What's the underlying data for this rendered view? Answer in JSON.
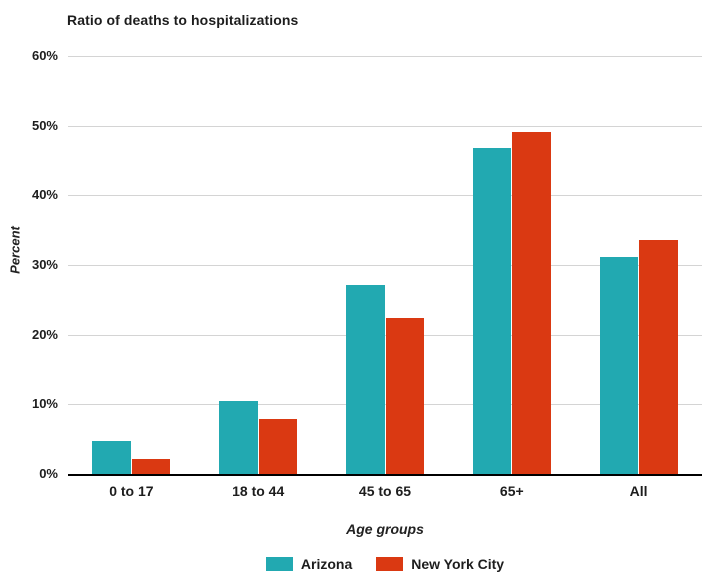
{
  "chart_data": {
    "type": "bar",
    "title": "Ratio of deaths to hospitalizations",
    "xlabel": "Age groups",
    "ylabel": "Percent",
    "categories": [
      "0 to 17",
      "18 to 44",
      "45 to 65",
      "65+",
      "All"
    ],
    "series": [
      {
        "name": "Arizona",
        "color": "#22A9B1",
        "values": [
          4.8,
          10.5,
          27.2,
          46.8,
          31.1
        ]
      },
      {
        "name": "New York City",
        "color": "#DA3912",
        "values": [
          2.2,
          7.9,
          22.4,
          49.1,
          33.6
        ]
      }
    ],
    "ylim": [
      0,
      60
    ],
    "yticks": [
      0,
      10,
      20,
      30,
      40,
      50,
      60
    ],
    "ytick_labels": [
      "0%",
      "10%",
      "20%",
      "30%",
      "40%",
      "50%",
      "60%"
    ],
    "grid": true,
    "legend_position": "bottom",
    "colors": {
      "gridline": "#d4d4d4",
      "axis_line": "#000000",
      "text": "#1d1d1d"
    }
  }
}
